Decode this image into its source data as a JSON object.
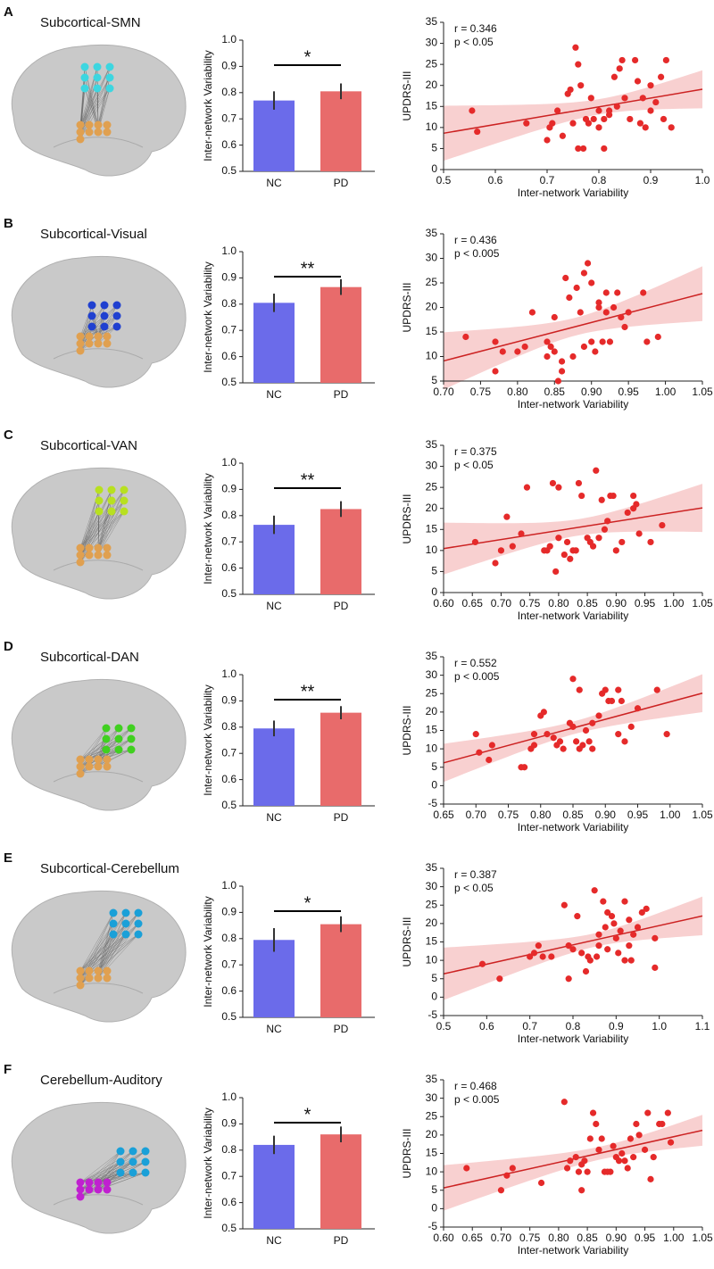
{
  "panels": [
    {
      "label": "A",
      "title": "Subcortical-SMN"
    },
    {
      "label": "B",
      "title": "Subcortical-Visual"
    },
    {
      "label": "C",
      "title": "Subcortical-VAN"
    },
    {
      "label": "D",
      "title": "Subcortical-DAN"
    },
    {
      "label": "E",
      "title": "Subcortical-Cerebellum"
    },
    {
      "label": "F",
      "title": "Cerebellum-Auditory"
    }
  ],
  "chart_data": [
    {
      "type": "bar",
      "categories": [
        "NC",
        "PD"
      ],
      "values": [
        0.77,
        0.805
      ],
      "errors": [
        0.035,
        0.03
      ],
      "colors": [
        "#6b6bea",
        "#e86b6b"
      ],
      "ylabel": "Inter-network Variability",
      "ylim": [
        0.5,
        1.0
      ],
      "yticks": [
        0.5,
        0.6,
        0.7,
        0.8,
        0.9,
        {
          "value": 1,
          "label": "1.0"
        }
      ],
      "annotation": "*"
    },
    {
      "type": "scatter",
      "x": [
        0.555,
        0.565,
        0.66,
        0.7,
        0.705,
        0.71,
        0.72,
        0.73,
        0.74,
        0.745,
        0.75,
        0.755,
        0.76,
        0.765,
        0.77,
        0.775,
        0.78,
        0.785,
        0.79,
        0.8,
        0.8,
        0.81,
        0.81,
        0.82,
        0.82,
        0.83,
        0.835,
        0.84,
        0.845,
        0.85,
        0.86,
        0.87,
        0.875,
        0.88,
        0.885,
        0.89,
        0.9,
        0.9,
        0.91,
        0.92,
        0.925,
        0.93,
        0.94,
        0.76
      ],
      "values": [
        14,
        9,
        11,
        7,
        10,
        11,
        14,
        8,
        18,
        19,
        11,
        29,
        25,
        20,
        5,
        12,
        11,
        17,
        12,
        10,
        14,
        5,
        12,
        13,
        14,
        22,
        15,
        24,
        26,
        17,
        12,
        26,
        21,
        11,
        17,
        10,
        20,
        14,
        16,
        22,
        12,
        26,
        10,
        5
      ],
      "color": "#e52a2a",
      "fit": true,
      "xlabel": "Inter-network Variability",
      "ylabel": "UPDRS-III",
      "xlim": [
        0.5,
        1.0
      ],
      "xticks": [
        0.5,
        0.6,
        0.7,
        0.8,
        0.9,
        {
          "value": 1,
          "label": "1.0"
        }
      ],
      "ylim": [
        0,
        35
      ],
      "yticks": [
        0,
        5,
        10,
        15,
        20,
        25,
        30,
        35
      ],
      "annotations": [
        "r = 0.346",
        "p < 0.05"
      ]
    },
    {
      "type": "bar",
      "categories": [
        "NC",
        "PD"
      ],
      "values": [
        0.805,
        0.865
      ],
      "errors": [
        0.035,
        0.03
      ],
      "colors": [
        "#6b6bea",
        "#e86b6b"
      ],
      "ylabel": "Inter-network Variability",
      "ylim": [
        0.5,
        1.0
      ],
      "yticks": [
        0.5,
        0.6,
        0.7,
        0.8,
        0.9,
        {
          "value": 1,
          "label": "1.0"
        }
      ],
      "annotation": "**"
    },
    {
      "type": "scatter",
      "x": [
        0.73,
        0.77,
        0.77,
        0.78,
        0.8,
        0.81,
        0.82,
        0.84,
        0.84,
        0.845,
        0.85,
        0.85,
        0.855,
        0.86,
        0.86,
        0.865,
        0.87,
        0.875,
        0.88,
        0.885,
        0.89,
        0.89,
        0.895,
        0.9,
        0.9,
        0.905,
        0.91,
        0.91,
        0.915,
        0.92,
        0.92,
        0.925,
        0.93,
        0.935,
        0.94,
        0.945,
        0.95,
        0.97,
        0.975,
        0.99
      ],
      "values": [
        14,
        7,
        13,
        11,
        11,
        12,
        19,
        10,
        13,
        12,
        11,
        18,
        5,
        9,
        7,
        26,
        22,
        10,
        24,
        19,
        12,
        27,
        29,
        25,
        13,
        11,
        20,
        21,
        13,
        19,
        23,
        13,
        20,
        23,
        18,
        16,
        19,
        23,
        13,
        14
      ],
      "color": "#e52a2a",
      "fit": true,
      "xlabel": "Inter-network Variability",
      "ylabel": "UPDRS-III",
      "xlim": [
        0.7,
        1.05
      ],
      "xticks": [
        {
          "value": 0.7,
          "label": "0.70"
        },
        0.75,
        {
          "value": 0.8,
          "label": "0.80"
        },
        0.85,
        {
          "value": 0.9,
          "label": "0.90"
        },
        0.95,
        {
          "value": 1,
          "label": "1.00"
        },
        1.05
      ],
      "ylim": [
        5,
        35
      ],
      "yticks": [
        5,
        10,
        15,
        20,
        25,
        30,
        35
      ],
      "annotations": [
        "r = 0.436",
        "p < 0.005"
      ]
    },
    {
      "type": "bar",
      "categories": [
        "NC",
        "PD"
      ],
      "values": [
        0.765,
        0.825
      ],
      "errors": [
        0.035,
        0.03
      ],
      "colors": [
        "#6b6bea",
        "#e86b6b"
      ],
      "ylabel": "Inter-network Variability",
      "ylim": [
        0.5,
        1.0
      ],
      "yticks": [
        0.5,
        0.6,
        0.7,
        0.8,
        0.9,
        {
          "value": 1,
          "label": "1.0"
        }
      ],
      "annotation": "**"
    },
    {
      "type": "scatter",
      "x": [
        0.655,
        0.69,
        0.7,
        0.71,
        0.72,
        0.735,
        0.745,
        0.775,
        0.78,
        0.785,
        0.79,
        0.795,
        0.8,
        0.8,
        0.81,
        0.815,
        0.82,
        0.825,
        0.83,
        0.835,
        0.84,
        0.85,
        0.855,
        0.86,
        0.865,
        0.87,
        0.875,
        0.88,
        0.885,
        0.89,
        0.895,
        0.9,
        0.91,
        0.92,
        0.93,
        0.93,
        0.935,
        0.94,
        0.96,
        0.98
      ],
      "values": [
        12,
        7,
        10,
        18,
        11,
        14,
        25,
        10,
        10,
        11,
        26,
        5,
        25,
        13,
        9,
        12,
        8,
        10,
        10,
        26,
        23,
        13,
        12,
        11,
        29,
        13,
        22,
        15,
        17,
        23,
        23,
        10,
        12,
        19,
        23,
        20,
        21,
        14,
        12,
        16
      ],
      "color": "#e52a2a",
      "fit": true,
      "xlabel": "Inter-network Variability",
      "ylabel": "UPDRS-III",
      "xlim": [
        0.6,
        1.05
      ],
      "xticks": [
        {
          "value": 0.6,
          "label": "0.60"
        },
        0.65,
        {
          "value": 0.7,
          "label": "0.70"
        },
        0.75,
        {
          "value": 0.8,
          "label": "0.80"
        },
        0.85,
        {
          "value": 0.9,
          "label": "0.90"
        },
        0.95,
        {
          "value": 1,
          "label": "1.00"
        },
        1.05
      ],
      "ylim": [
        0,
        35
      ],
      "yticks": [
        0,
        5,
        10,
        15,
        20,
        25,
        30,
        35
      ],
      "annotations": [
        "r = 0.375",
        "p < 0.05"
      ]
    },
    {
      "type": "bar",
      "categories": [
        "NC",
        "PD"
      ],
      "values": [
        0.795,
        0.855
      ],
      "errors": [
        0.03,
        0.025
      ],
      "colors": [
        "#6b6bea",
        "#e86b6b"
      ],
      "ylabel": "Inter-network Variability",
      "ylim": [
        0.5,
        1.0
      ],
      "yticks": [
        0.5,
        0.6,
        0.7,
        0.8,
        0.9,
        {
          "value": 1,
          "label": "1.0"
        }
      ],
      "annotation": "**"
    },
    {
      "type": "scatter",
      "x": [
        0.7,
        0.705,
        0.72,
        0.725,
        0.77,
        0.775,
        0.785,
        0.79,
        0.8,
        0.805,
        0.81,
        0.82,
        0.825,
        0.83,
        0.835,
        0.845,
        0.85,
        0.855,
        0.86,
        0.86,
        0.865,
        0.87,
        0.875,
        0.88,
        0.89,
        0.895,
        0.9,
        0.905,
        0.91,
        0.92,
        0.92,
        0.925,
        0.93,
        0.94,
        0.95,
        0.98,
        0.995,
        0.88,
        0.85,
        0.79
      ],
      "values": [
        14,
        9,
        7,
        11,
        5,
        5,
        10,
        11,
        19,
        20,
        14,
        13,
        11,
        12,
        10,
        17,
        29,
        12,
        10,
        26,
        11,
        15,
        12,
        17,
        19,
        25,
        26,
        23,
        23,
        26,
        14,
        23,
        12,
        16,
        21,
        26,
        14,
        10,
        16,
        14
      ],
      "color": "#e52a2a",
      "fit": true,
      "xlabel": "Inter-network Variability",
      "ylabel": "UPDRS-III",
      "xlim": [
        0.65,
        1.05
      ],
      "xticks": [
        0.65,
        {
          "value": 0.7,
          "label": "0.70"
        },
        0.75,
        {
          "value": 0.8,
          "label": "0.80"
        },
        0.85,
        {
          "value": 0.9,
          "label": "0.90"
        },
        0.95,
        {
          "value": 1,
          "label": "1.00"
        },
        1.05
      ],
      "ylim": [
        -5,
        35
      ],
      "yticks": [
        -5,
        0,
        5,
        10,
        15,
        20,
        25,
        30,
        35
      ],
      "annotations": [
        "r = 0.552",
        "p < 0.005"
      ]
    },
    {
      "type": "bar",
      "categories": [
        "NC",
        "PD"
      ],
      "values": [
        0.795,
        0.855
      ],
      "errors": [
        0.045,
        0.03
      ],
      "colors": [
        "#6b6bea",
        "#e86b6b"
      ],
      "ylabel": "Inter-network Variability",
      "ylim": [
        0.5,
        1.0
      ],
      "yticks": [
        0.5,
        0.6,
        0.7,
        0.8,
        0.9,
        {
          "value": 1,
          "label": "1.0"
        }
      ],
      "annotation": "*"
    },
    {
      "type": "scatter",
      "x": [
        0.59,
        0.63,
        0.7,
        0.71,
        0.73,
        0.72,
        0.78,
        0.79,
        0.79,
        0.8,
        0.81,
        0.82,
        0.83,
        0.835,
        0.84,
        0.85,
        0.855,
        0.86,
        0.86,
        0.87,
        0.875,
        0.88,
        0.88,
        0.89,
        0.895,
        0.9,
        0.905,
        0.91,
        0.92,
        0.92,
        0.93,
        0.93,
        0.935,
        0.94,
        0.95,
        0.96,
        0.97,
        0.99,
        0.99,
        0.75
      ],
      "values": [
        9,
        5,
        11,
        12,
        11,
        14,
        25,
        14,
        5,
        13,
        22,
        12,
        7,
        11,
        10,
        29,
        11,
        14,
        17,
        26,
        19,
        23,
        13,
        22,
        20,
        16,
        12,
        18,
        26,
        10,
        14,
        21,
        10,
        17,
        19,
        23,
        24,
        8,
        16,
        11
      ],
      "color": "#e52a2a",
      "fit": true,
      "xlabel": "Inter-network Variability",
      "ylabel": "UPDRS-III",
      "xlim": [
        0.5,
        1.1
      ],
      "xticks": [
        0.5,
        0.6,
        0.7,
        0.8,
        0.9,
        {
          "value": 1,
          "label": "1.0"
        },
        1.1
      ],
      "ylim": [
        -5,
        35
      ],
      "yticks": [
        -5,
        0,
        5,
        10,
        15,
        20,
        25,
        30,
        35
      ],
      "annotations": [
        "r = 0.387",
        "p < 0.05"
      ]
    },
    {
      "type": "bar",
      "categories": [
        "NC",
        "PD"
      ],
      "values": [
        0.82,
        0.86
      ],
      "errors": [
        0.035,
        0.03
      ],
      "colors": [
        "#6b6bea",
        "#e86b6b"
      ],
      "ylabel": "Inter-network Variability",
      "ylim": [
        0.5,
        1.0
      ],
      "yticks": [
        0.5,
        0.6,
        0.7,
        0.8,
        0.9,
        {
          "value": 1,
          "label": "1.0"
        }
      ],
      "annotation": "*"
    },
    {
      "type": "scatter",
      "x": [
        0.64,
        0.7,
        0.71,
        0.72,
        0.77,
        0.81,
        0.815,
        0.82,
        0.83,
        0.835,
        0.84,
        0.845,
        0.85,
        0.855,
        0.86,
        0.865,
        0.87,
        0.875,
        0.88,
        0.885,
        0.89,
        0.895,
        0.9,
        0.905,
        0.91,
        0.915,
        0.92,
        0.925,
        0.93,
        0.935,
        0.94,
        0.95,
        0.955,
        0.96,
        0.965,
        0.975,
        0.98,
        0.99,
        0.995,
        0.84
      ],
      "values": [
        11,
        5,
        9,
        11,
        7,
        29,
        11,
        13,
        14,
        10,
        12,
        13,
        10,
        19,
        26,
        23,
        16,
        19,
        10,
        10,
        10,
        17,
        14,
        13,
        15,
        13,
        11,
        19,
        14,
        23,
        20,
        16,
        26,
        8,
        14,
        23,
        23,
        26,
        18,
        5
      ],
      "color": "#e52a2a",
      "fit": true,
      "xlabel": "Inter-network Variability",
      "ylabel": "UPDRS-III",
      "xlim": [
        0.6,
        1.05
      ],
      "xticks": [
        {
          "value": 0.6,
          "label": "0.60"
        },
        0.65,
        {
          "value": 0.7,
          "label": "0.70"
        },
        0.75,
        {
          "value": 0.8,
          "label": "0.80"
        },
        0.85,
        {
          "value": 0.9,
          "label": "0.90"
        },
        0.95,
        {
          "value": 1,
          "label": "1.00"
        },
        1.05
      ],
      "ylim": [
        -5,
        35
      ],
      "yticks": [
        -5,
        0,
        5,
        10,
        15,
        20,
        25,
        30,
        35
      ],
      "annotations": [
        "r = 0.468",
        "p < 0.005"
      ]
    }
  ]
}
